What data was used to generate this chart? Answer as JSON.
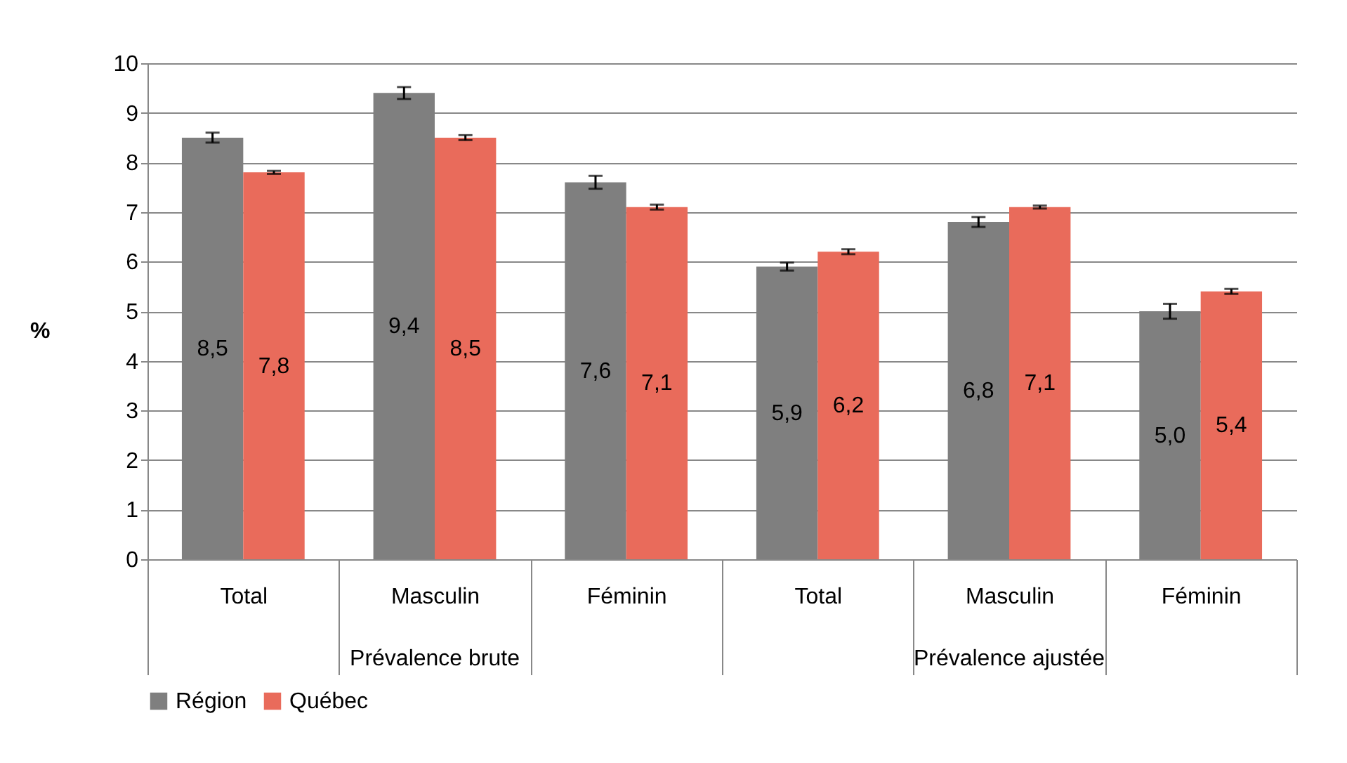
{
  "chart_data": {
    "type": "bar",
    "ylabel": "%",
    "categories": [
      "Total",
      "Masculin",
      "Féminin",
      "Total",
      "Masculin",
      "Féminin"
    ],
    "annotations": [
      "Prévalence brute",
      "Prévalence ajustée"
    ],
    "series": [
      {
        "name": "Région",
        "color": "#7f7f7f",
        "values": [
          8.5,
          9.4,
          7.6,
          5.9,
          6.8,
          5.0
        ],
        "value_labels": [
          "8,5",
          "9,4",
          "7,6",
          "5,9",
          "6,8",
          "5,0"
        ],
        "errors": [
          0.1,
          0.12,
          0.13,
          0.08,
          0.1,
          0.15
        ]
      },
      {
        "name": "Québec",
        "color": "#e96b5b",
        "values": [
          7.8,
          8.5,
          7.1,
          6.2,
          7.1,
          5.4
        ],
        "value_labels": [
          "7,8",
          "8,5",
          "7,1",
          "6,2",
          "7,1",
          "5,4"
        ],
        "errors": [
          0.03,
          0.05,
          0.05,
          0.05,
          0.03,
          0.05
        ]
      }
    ],
    "ylim": [
      0,
      10
    ],
    "yticks": [
      0,
      1,
      2,
      3,
      4,
      5,
      6,
      7,
      8,
      9,
      10
    ],
    "grid": "y",
    "legend": "bottom"
  }
}
